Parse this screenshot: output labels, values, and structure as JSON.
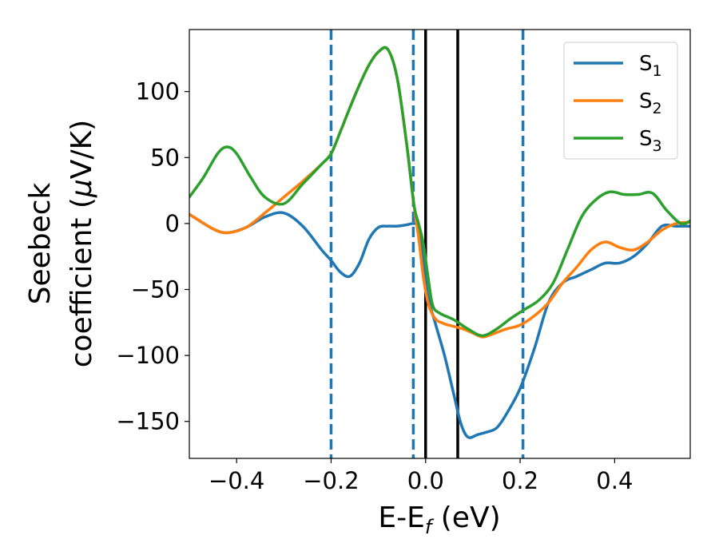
{
  "chart_data": {
    "type": "line",
    "xlabel": {
      "main": "E-E",
      "subscript": "f",
      "unit": " (eV)"
    },
    "ylabel": {
      "line1": "Seebeck",
      "line2_text": "coefficient  (",
      "line2_symbol": "μ",
      "line2_unit": "V/K)"
    },
    "xlim": [
      -0.5,
      0.56
    ],
    "ylim": [
      -178,
      147
    ],
    "x_ticks": [
      -0.4,
      -0.2,
      0.0,
      0.2,
      0.4
    ],
    "x_tick_labels": [
      "−0.4",
      "−0.2",
      "0.0",
      "0.2",
      "0.4"
    ],
    "y_ticks": [
      100,
      50,
      0,
      -50,
      -100,
      -150
    ],
    "y_tick_labels": [
      "100",
      "50",
      "0",
      "−50",
      "−100",
      "−150"
    ],
    "grid": false,
    "legend_position": "top-right",
    "series": [
      {
        "name_main": "S",
        "name_sub": "1",
        "color": "#1f77b4",
        "x": [
          -0.5,
          -0.45,
          -0.42,
          -0.38,
          -0.34,
          -0.3,
          -0.26,
          -0.22,
          -0.2,
          -0.18,
          -0.16,
          -0.14,
          -0.12,
          -0.1,
          -0.08,
          -0.06,
          -0.04,
          -0.025,
          -0.015,
          -0.005,
          0.005,
          0.02,
          0.04,
          0.06,
          0.075,
          0.09,
          0.11,
          0.13,
          0.15,
          0.17,
          0.2,
          0.23,
          0.26,
          0.29,
          0.32,
          0.35,
          0.38,
          0.41,
          0.44,
          0.47,
          0.5,
          0.53,
          0.56
        ],
        "y": [
          7,
          -4,
          -7,
          -3,
          5,
          8,
          -2,
          -20,
          -28,
          -37,
          -40,
          -30,
          -12,
          -3,
          -2,
          -2,
          -1,
          0,
          -3,
          -25,
          -55,
          -75,
          -100,
          -130,
          -152,
          -162,
          -160,
          -158,
          -155,
          -145,
          -125,
          -95,
          -60,
          -45,
          -40,
          -35,
          -30,
          -30,
          -25,
          -15,
          -2,
          -2,
          -2
        ]
      },
      {
        "name_main": "S",
        "name_sub": "2",
        "color": "#ff7f0e",
        "x": [
          -0.5,
          -0.45,
          -0.42,
          -0.38,
          -0.34,
          -0.3,
          -0.26,
          -0.22,
          -0.2,
          -0.18,
          -0.16,
          -0.14,
          -0.12,
          -0.1,
          -0.08,
          -0.06,
          -0.04,
          -0.025,
          -0.015,
          -0.005,
          0.005,
          0.02,
          0.04,
          0.06,
          0.08,
          0.1,
          0.12,
          0.14,
          0.17,
          0.2,
          0.23,
          0.26,
          0.29,
          0.32,
          0.35,
          0.38,
          0.41,
          0.44,
          0.47,
          0.5,
          0.53,
          0.56
        ],
        "y": [
          7,
          -4,
          -7,
          -3,
          8,
          20,
          32,
          45,
          53,
          70,
          88,
          105,
          120,
          130,
          132,
          110,
          60,
          15,
          -10,
          -40,
          -60,
          -72,
          -76,
          -78,
          -80,
          -83,
          -86,
          -84,
          -80,
          -77,
          -70,
          -60,
          -45,
          -33,
          -20,
          -14,
          -18,
          -20,
          -14,
          -5,
          0,
          1
        ]
      },
      {
        "name_main": "S",
        "name_sub": "3",
        "color": "#2ca02c",
        "x": [
          -0.5,
          -0.47,
          -0.44,
          -0.42,
          -0.4,
          -0.37,
          -0.34,
          -0.3,
          -0.26,
          -0.22,
          -0.2,
          -0.18,
          -0.16,
          -0.14,
          -0.12,
          -0.1,
          -0.08,
          -0.06,
          -0.04,
          -0.025,
          -0.015,
          -0.005,
          0.005,
          0.015,
          0.03,
          0.06,
          0.09,
          0.12,
          0.15,
          0.18,
          0.21,
          0.24,
          0.27,
          0.3,
          0.33,
          0.36,
          0.39,
          0.42,
          0.45,
          0.48,
          0.51,
          0.54,
          0.56
        ],
        "y": [
          20,
          35,
          53,
          58,
          53,
          35,
          20,
          15,
          30,
          45,
          53,
          70,
          88,
          105,
          120,
          130,
          132,
          110,
          60,
          15,
          0,
          -15,
          -40,
          -62,
          -68,
          -73,
          -80,
          -85,
          -80,
          -72,
          -65,
          -58,
          -45,
          -20,
          5,
          18,
          24,
          22,
          22,
          23,
          10,
          0,
          2
        ]
      }
    ],
    "vertical_lines": [
      {
        "x": -0.2,
        "style": "dashed",
        "color": "#1f77b4"
      },
      {
        "x": -0.026,
        "style": "dashed",
        "color": "#1f77b4"
      },
      {
        "x": 0.0,
        "style": "solid",
        "color": "#000000"
      },
      {
        "x": 0.068,
        "style": "solid",
        "color": "#000000"
      },
      {
        "x": 0.206,
        "style": "dashed",
        "color": "#1f77b4"
      }
    ]
  }
}
